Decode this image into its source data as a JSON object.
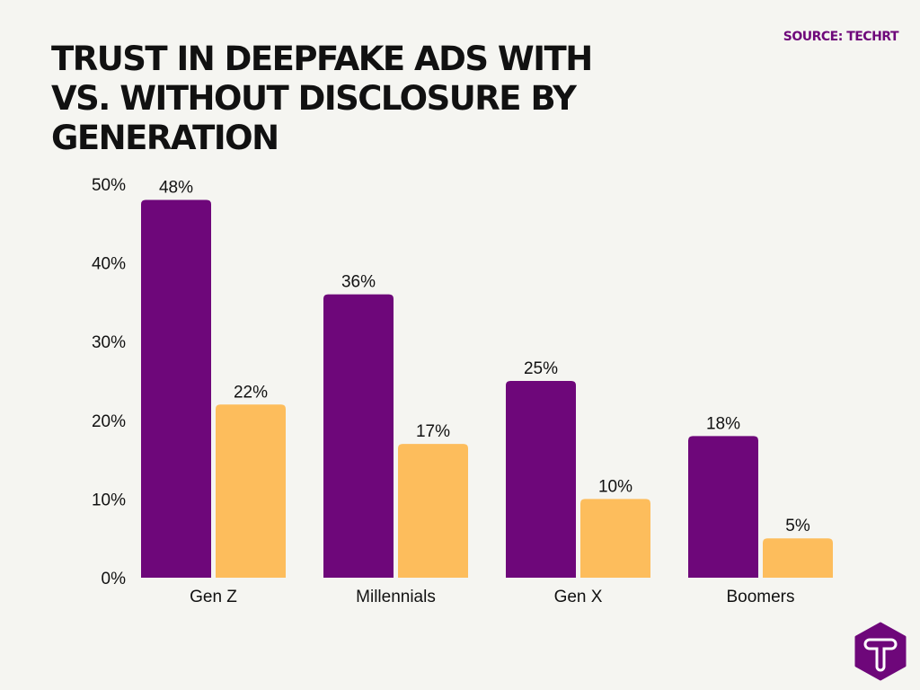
{
  "header": {
    "title": "Trust in deepfake ads with vs. without disclosure by generation",
    "source": "SOURCE: TECHRT"
  },
  "logo": {
    "letter": "T",
    "color": "#6E077A"
  },
  "chart_data": {
    "type": "bar",
    "title": "Trust in deepfake ads with vs. without disclosure by generation",
    "categories": [
      "Gen Z",
      "Millennials",
      "Gen X",
      "Boomers"
    ],
    "series": [
      {
        "values": [
          48,
          36,
          25,
          18
        ],
        "color": "#6E077A"
      },
      {
        "values": [
          22,
          17,
          10,
          5
        ],
        "color": "#FDBD5C"
      }
    ],
    "value_labels": [
      [
        "48%",
        "36%",
        "25%",
        "18%"
      ],
      [
        "22%",
        "17%",
        "10%",
        "5%"
      ]
    ],
    "yticks": [
      "0%",
      "10%",
      "20%",
      "30%",
      "40%",
      "50%"
    ],
    "ytick_values": [
      0,
      10,
      20,
      30,
      40,
      50
    ],
    "ylim": [
      0,
      50
    ],
    "xlabel": "",
    "ylabel": "",
    "grid": false,
    "legend": "none"
  }
}
